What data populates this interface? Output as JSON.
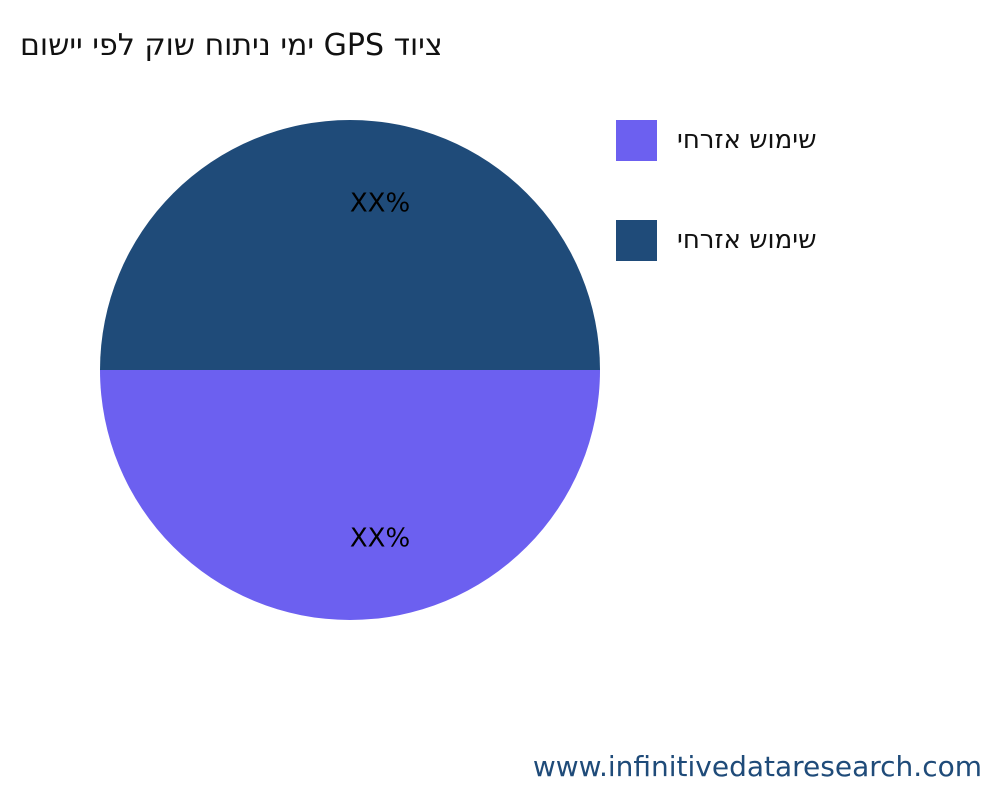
{
  "chart_data": {
    "type": "pie",
    "title": "ציוד GPS ימי ניתוח שוק לפי יישום",
    "slices": [
      {
        "name": "שימוש אזרחי",
        "value": 50,
        "label": "XX%",
        "color": "#6c60f0"
      },
      {
        "name": "שימוש אזרחי",
        "value": 50,
        "label": "XX%",
        "color": "#1f4b79"
      }
    ],
    "legend_position": "right"
  },
  "footer": "www.infinitivedataresearch.com"
}
